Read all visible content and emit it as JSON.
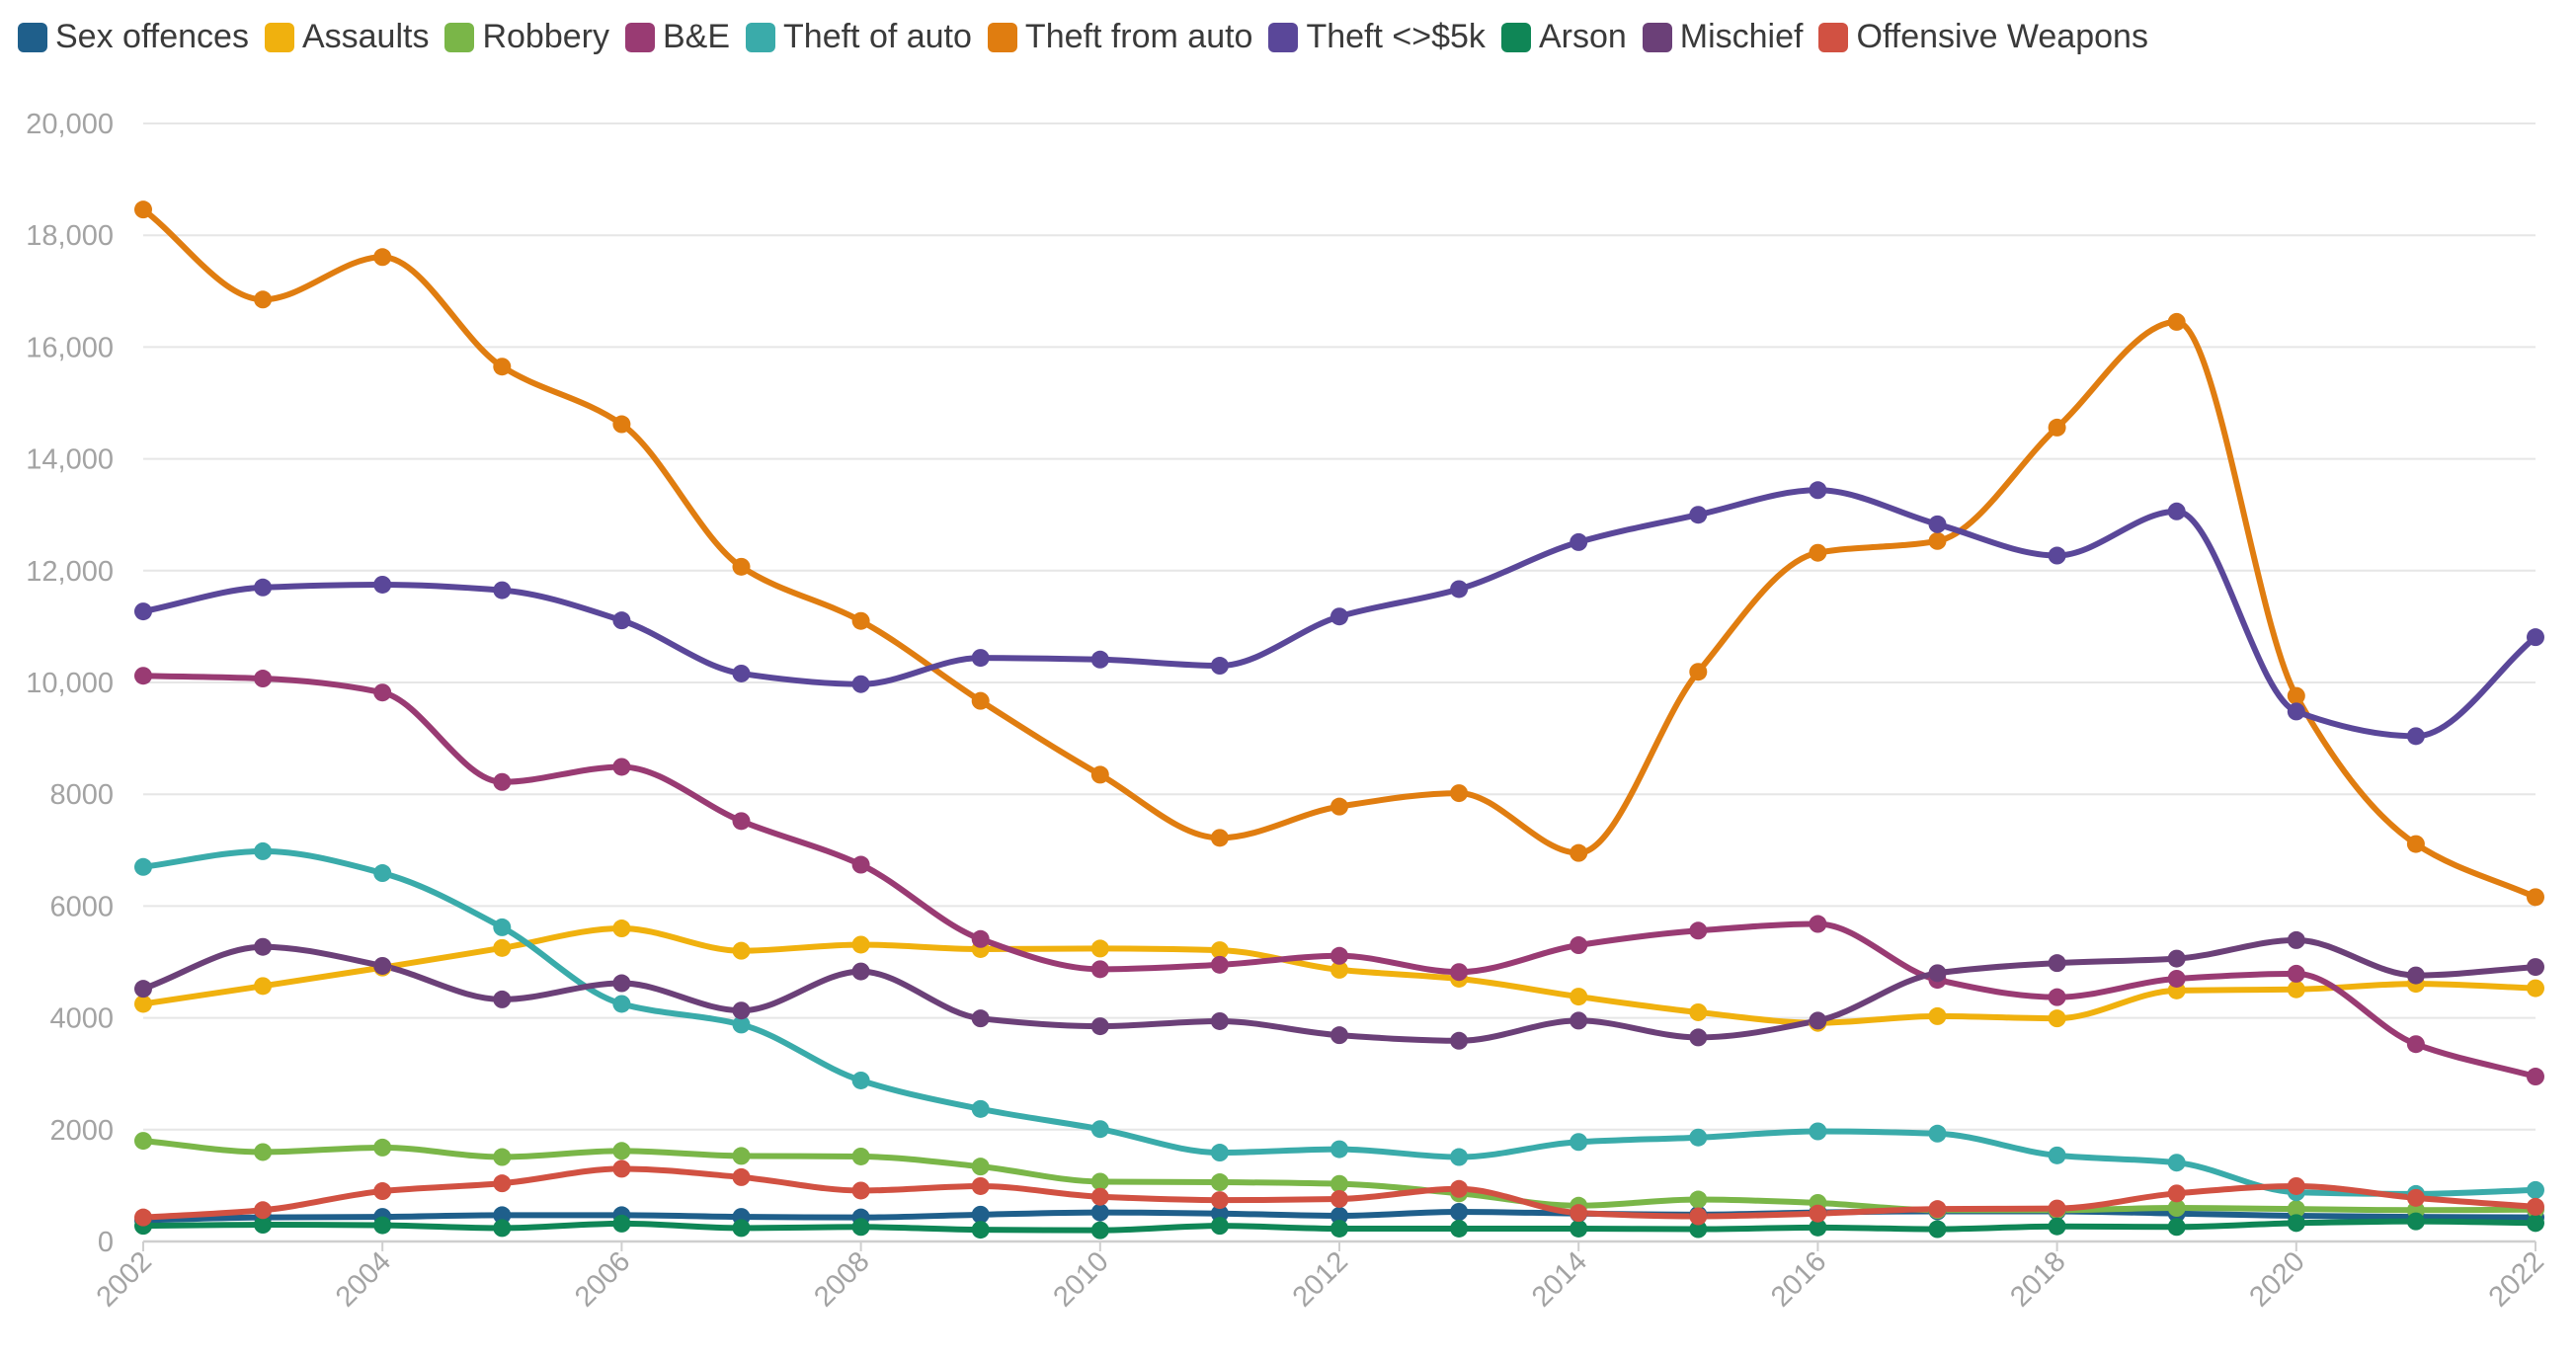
{
  "chart_data": {
    "type": "line",
    "title": "",
    "xlabel": "",
    "ylabel": "",
    "x": [
      2002,
      2003,
      2004,
      2005,
      2006,
      2007,
      2008,
      2009,
      2010,
      2011,
      2012,
      2013,
      2014,
      2015,
      2016,
      2017,
      2018,
      2019,
      2020,
      2021,
      2022
    ],
    "xticks": [
      "2002",
      "2004",
      "2006",
      "2008",
      "2010",
      "2012",
      "2014",
      "2016",
      "2018",
      "2020",
      "2022"
    ],
    "yticks": [
      "0",
      "2000",
      "4000",
      "6000",
      "8000",
      "10,000",
      "12,000",
      "14,000",
      "16,000",
      "18,000",
      "20,000"
    ],
    "ylim": [
      0,
      20000
    ],
    "grid": "horizontal",
    "legend_position": "top-left",
    "series": [
      {
        "name": "Sex offences",
        "color": "#1f5f8b",
        "values": [
          380,
          430,
          440,
          470,
          470,
          440,
          430,
          480,
          520,
          500,
          460,
          530,
          500,
          480,
          520,
          540,
          540,
          500,
          460,
          440,
          430
        ]
      },
      {
        "name": "Assaults",
        "color": "#f0b10e",
        "values": [
          4250,
          4570,
          4900,
          5250,
          5600,
          5200,
          5310,
          5230,
          5240,
          5210,
          4860,
          4700,
          4380,
          4100,
          3910,
          4030,
          3990,
          4490,
          4510,
          4610,
          4530
        ]
      },
      {
        "name": "Robbery",
        "color": "#7ab648",
        "values": [
          1800,
          1600,
          1680,
          1510,
          1620,
          1530,
          1520,
          1340,
          1070,
          1060,
          1030,
          860,
          640,
          750,
          690,
          560,
          560,
          600,
          580,
          560,
          570
        ]
      },
      {
        "name": "B&E",
        "color": "#993b73",
        "values": [
          10120,
          10070,
          9820,
          8220,
          8490,
          7520,
          6740,
          5410,
          4870,
          4950,
          5110,
          4820,
          5300,
          5560,
          5680,
          4680,
          4370,
          4700,
          4790,
          3530,
          2950
        ]
      },
      {
        "name": "Theft of auto",
        "color": "#3aabaa",
        "values": [
          6700,
          6980,
          6590,
          5620,
          4250,
          3880,
          2880,
          2370,
          2010,
          1590,
          1650,
          1510,
          1780,
          1860,
          1970,
          1930,
          1540,
          1410,
          880,
          850,
          920
        ]
      },
      {
        "name": "Theft from auto",
        "color": "#e07d10",
        "values": [
          18460,
          16850,
          17610,
          15650,
          14620,
          12070,
          11100,
          9670,
          8350,
          7220,
          7780,
          8020,
          6950,
          10190,
          12320,
          12530,
          14560,
          16450,
          9760,
          7110,
          6160
        ]
      },
      {
        "name": "Theft <>$5k",
        "color": "#5a4799",
        "values": [
          11270,
          11700,
          11750,
          11650,
          11110,
          10160,
          9970,
          10440,
          10410,
          10300,
          11180,
          11670,
          12510,
          13000,
          13440,
          12830,
          12270,
          13060,
          9480,
          9040,
          10810
        ]
      },
      {
        "name": "Arson",
        "color": "#0f8656",
        "values": [
          280,
          300,
          290,
          240,
          320,
          240,
          260,
          210,
          200,
          280,
          230,
          230,
          230,
          220,
          250,
          220,
          270,
          260,
          330,
          360,
          330
        ]
      },
      {
        "name": "Mischief",
        "color": "#6b4078",
        "values": [
          4520,
          5270,
          4930,
          4330,
          4620,
          4130,
          4830,
          3990,
          3850,
          3940,
          3690,
          3590,
          3950,
          3650,
          3950,
          4800,
          4980,
          5060,
          5390,
          4760,
          4910
        ]
      },
      {
        "name": "Offensive Weapons",
        "color": "#d15142",
        "values": [
          430,
          560,
          900,
          1040,
          1300,
          1150,
          910,
          990,
          800,
          740,
          760,
          940,
          510,
          450,
          500,
          580,
          590,
          860,
          990,
          780,
          620
        ]
      }
    ]
  }
}
